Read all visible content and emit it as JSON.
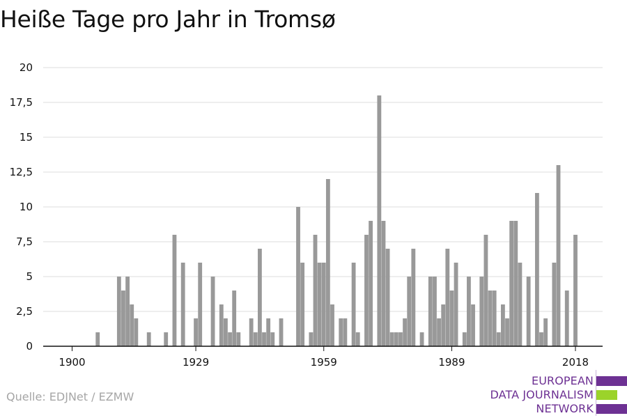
{
  "title": "Heiße Tage pro Jahr in Tromsø",
  "source": "Quelle: EDJNet / EZMW",
  "logo": {
    "line1": "EUROPEAN",
    "line2": "DATA JOURNALISM",
    "line3": "NETWORK",
    "purple": "#6d3193",
    "green": "#9bd32a"
  },
  "chart_data": {
    "type": "bar",
    "title": "Heiße Tage pro Jahr in Tromsø",
    "xlabel": "",
    "ylabel": "",
    "ylim": [
      0,
      20
    ],
    "xlim": [
      1899,
      2020
    ],
    "grid": true,
    "bar_color": "#999999",
    "y_ticks": [
      0,
      2.5,
      5,
      7.5,
      10,
      12.5,
      15,
      17.5,
      20
    ],
    "y_tick_labels": [
      "0",
      "2,5",
      "5",
      "7,5",
      "10",
      "12,5",
      "15",
      "17,5",
      "20"
    ],
    "x_ticks": [
      1900,
      1929,
      1959,
      1989,
      2018
    ],
    "x_tick_labels": [
      "1900",
      "1929",
      "1959",
      "1989",
      "2018"
    ],
    "series": [
      {
        "x": [
          1900,
          1901,
          1902,
          1903,
          1904,
          1905,
          1906,
          1907,
          1908,
          1909,
          1910,
          1911,
          1912,
          1913,
          1914,
          1915,
          1916,
          1917,
          1918,
          1919,
          1920,
          1921,
          1922,
          1923,
          1924,
          1925,
          1926,
          1927,
          1928,
          1929,
          1930,
          1931,
          1932,
          1933,
          1934,
          1935,
          1936,
          1937,
          1938,
          1939,
          1940,
          1941,
          1942,
          1943,
          1944,
          1945,
          1946,
          1947,
          1948,
          1949,
          1950,
          1951,
          1952,
          1953,
          1954,
          1955,
          1956,
          1957,
          1958,
          1959,
          1960,
          1961,
          1962,
          1963,
          1964,
          1965,
          1966,
          1967,
          1968,
          1969,
          1970,
          1971,
          1972,
          1973,
          1974,
          1975,
          1976,
          1977,
          1978,
          1979,
          1980,
          1981,
          1982,
          1983,
          1984,
          1985,
          1986,
          1987,
          1988,
          1989,
          1990,
          1991,
          1992,
          1993,
          1994,
          1995,
          1996,
          1997,
          1998,
          1999,
          2000,
          2001,
          2002,
          2003,
          2004,
          2005,
          2006,
          2007,
          2008,
          2009,
          2010,
          2011,
          2012,
          2013,
          2014,
          2015,
          2016,
          2017,
          2018
        ],
        "values": [
          0,
          0,
          0,
          0,
          0,
          0,
          1,
          0,
          0,
          0,
          0,
          5,
          4,
          5,
          3,
          2,
          0,
          0,
          1,
          0,
          0,
          0,
          1,
          0,
          8,
          0,
          6,
          0,
          0,
          2,
          6,
          0,
          0,
          5,
          0,
          3,
          2,
          1,
          4,
          1,
          0,
          0,
          2,
          1,
          7,
          1,
          2,
          1,
          0,
          2,
          0,
          0,
          0,
          10,
          6,
          0,
          1,
          8,
          6,
          6,
          12,
          3,
          0,
          2,
          2,
          0,
          6,
          1,
          0,
          8,
          9,
          0,
          18,
          9,
          7,
          1,
          1,
          1,
          2,
          5,
          7,
          0,
          1,
          0,
          5,
          5,
          2,
          3,
          7,
          4,
          6,
          0,
          1,
          5,
          3,
          0,
          5,
          8,
          4,
          4,
          1,
          3,
          2,
          9,
          9,
          6,
          0,
          5,
          0,
          11,
          1,
          2,
          0,
          6,
          13,
          0,
          4,
          0,
          8
        ]
      }
    ]
  }
}
